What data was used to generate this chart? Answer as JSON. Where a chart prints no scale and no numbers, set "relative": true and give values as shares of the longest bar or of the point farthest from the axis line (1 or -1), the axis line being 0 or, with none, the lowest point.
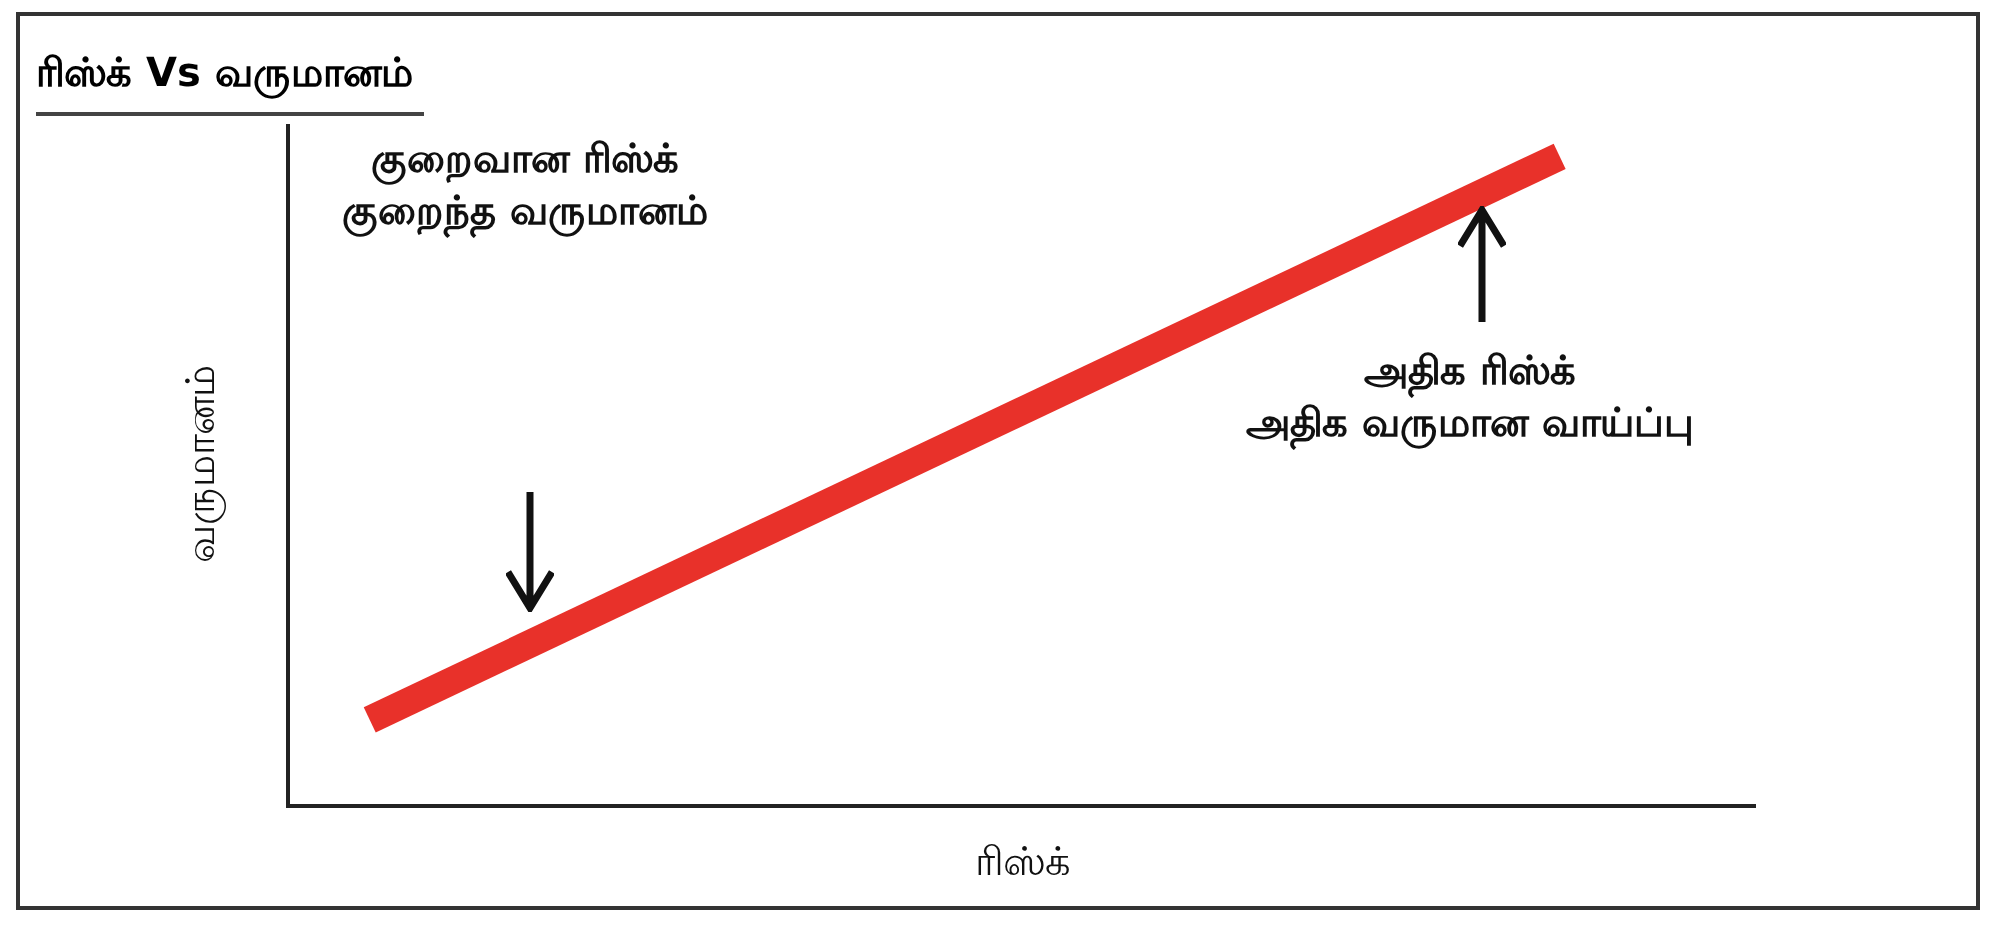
{
  "chart_data": {
    "type": "line",
    "title": "ரிஸ்க் Vs வருமானம்",
    "xlabel": "ரிஸ்க்",
    "ylabel": "வருமானம்",
    "relative": true,
    "categories": [
      null,
      null
    ],
    "series": [
      {
        "color": "#e8312a",
        "values": [
          0.13,
          1
        ]
      }
    ],
    "annotations": [
      "குறைவான ரிஸ்க்\nகுறைந்த வருமானம்",
      "அதிக ரிஸ்க்\nஅதிக வருமான வாய்ப்பு"
    ],
    "marker": "none",
    "line_style": "solid"
  }
}
